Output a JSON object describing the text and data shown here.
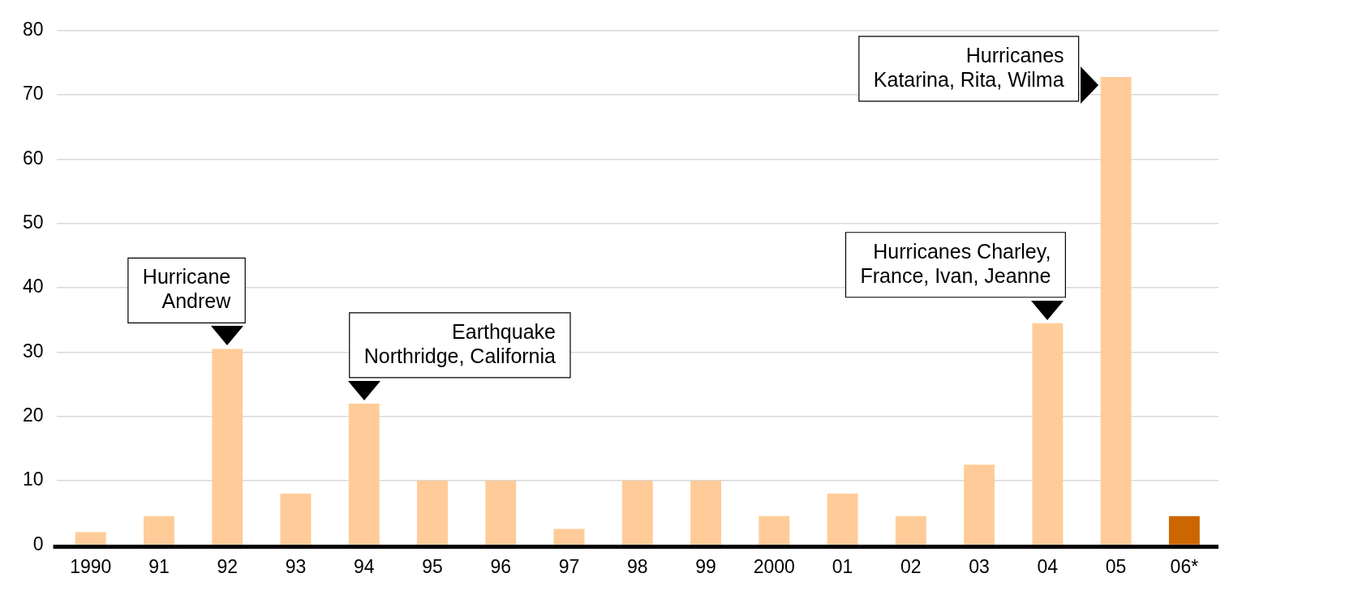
{
  "chart_data": {
    "type": "bar",
    "categories": [
      "1990",
      "91",
      "92",
      "93",
      "94",
      "95",
      "96",
      "97",
      "98",
      "99",
      "2000",
      "01",
      "02",
      "03",
      "04",
      "05",
      "06*"
    ],
    "values": [
      2,
      4.5,
      30.5,
      8,
      22,
      10,
      10,
      2.5,
      10,
      10,
      4.5,
      8,
      4.5,
      12.5,
      34.5,
      72.8,
      4.5
    ],
    "colors": [
      "#ffcc99",
      "#ffcc99",
      "#ffcc99",
      "#ffcc99",
      "#ffcc99",
      "#ffcc99",
      "#ffcc99",
      "#ffcc99",
      "#ffcc99",
      "#ffcc99",
      "#ffcc99",
      "#ffcc99",
      "#ffcc99",
      "#ffcc99",
      "#ffcc99",
      "#ffcc99",
      "#cc6600"
    ],
    "ylim": [
      0,
      80
    ],
    "yticks": [
      0,
      10,
      20,
      30,
      40,
      50,
      60,
      70,
      80
    ],
    "grid": "y",
    "legend": false,
    "annotations": [
      {
        "text": "Hurricane\nAndrew",
        "x": "92",
        "y": 30.5
      },
      {
        "text": "Earthquake\nNorthridge, California",
        "x": "94",
        "y": 22
      },
      {
        "text": "Hurricanes Charley,\nFrance, Ivan, Jeanne",
        "x": "04",
        "y": 34.5
      },
      {
        "text": "Hurricanes\nKatarina, Rita, Wilma",
        "x": "05",
        "y": 72.8
      }
    ]
  }
}
